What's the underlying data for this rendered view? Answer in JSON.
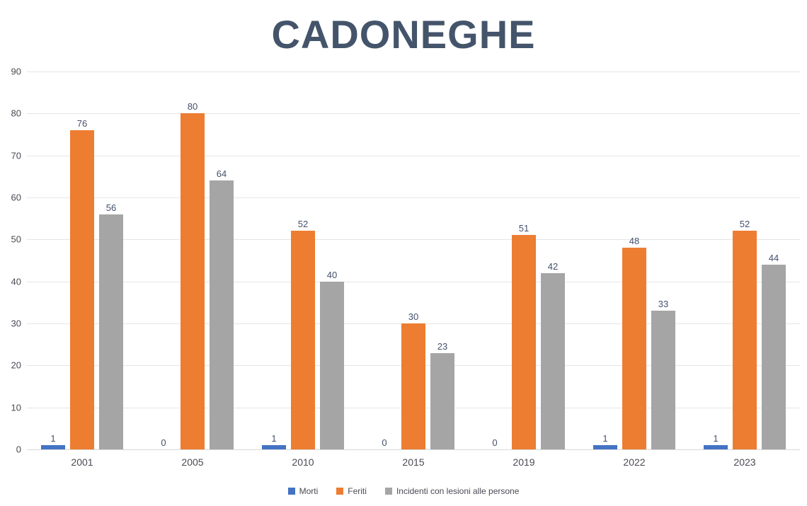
{
  "title": "CADONEGHE",
  "colors": {
    "title": "#44546A",
    "gridline": "#E6E6E6",
    "axis_text": "#4a4a55",
    "data_label_text": "#44506b"
  },
  "chart_data": {
    "type": "bar",
    "title": "CADONEGHE",
    "categories": [
      "2001",
      "2005",
      "2010",
      "2015",
      "2019",
      "2022",
      "2023"
    ],
    "series": [
      {
        "name": "Morti",
        "color": "#4472C4",
        "values": [
          1,
          0,
          1,
          0,
          0,
          1,
          1
        ]
      },
      {
        "name": "Feriti",
        "color": "#ED7D31",
        "values": [
          76,
          80,
          52,
          30,
          51,
          48,
          52
        ]
      },
      {
        "name": "Incidenti con lesioni alle persone",
        "color": "#A5A5A5",
        "values": [
          56,
          64,
          40,
          23,
          42,
          33,
          44
        ]
      }
    ],
    "xlabel": "",
    "ylabel": "",
    "ylim": [
      0,
      90
    ],
    "yticks": [
      0,
      10,
      20,
      30,
      40,
      50,
      60,
      70,
      80,
      90
    ],
    "grid": true,
    "data_labels": true,
    "legend_position": "bottom"
  }
}
